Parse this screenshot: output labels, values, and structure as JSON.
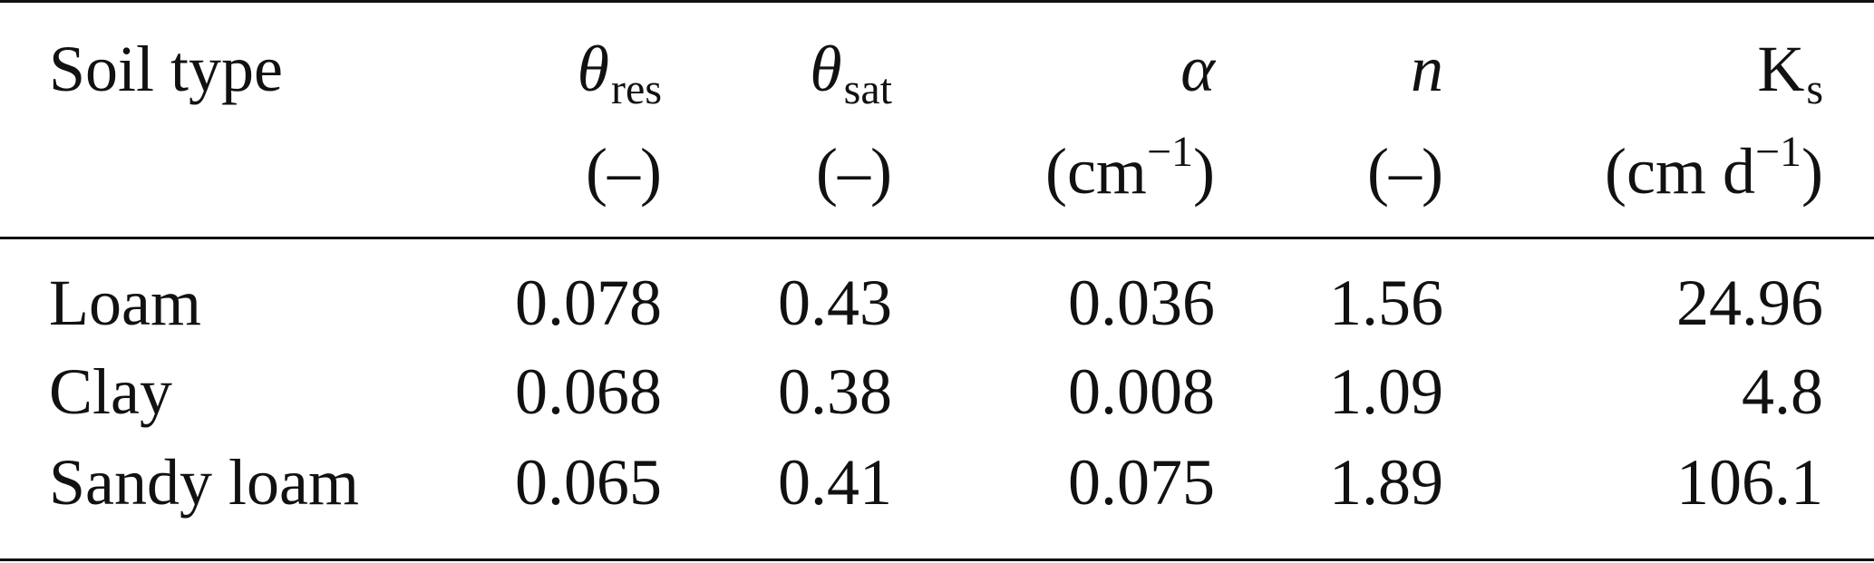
{
  "table": {
    "header": {
      "soil_type": "Soil type",
      "theta_res": {
        "symbol": "θ",
        "sub": "res",
        "unit": "(–)"
      },
      "theta_sat": {
        "symbol": "θ",
        "sub": "sat",
        "unit": "(–)"
      },
      "alpha": {
        "symbol": "α",
        "unit_base": "(cm",
        "unit_sup": "−1",
        "unit_close": ")"
      },
      "n": {
        "symbol": "n",
        "unit": "(–)"
      },
      "ks": {
        "symbol": "K",
        "sub": "s",
        "unit_base": "(cm d",
        "unit_sup": "−1",
        "unit_close": ")"
      }
    },
    "rows": [
      {
        "soil": "Loam",
        "theta_res": "0.078",
        "theta_sat": "0.43",
        "alpha": "0.036",
        "n": "1.56",
        "ks": "24.96"
      },
      {
        "soil": "Clay",
        "theta_res": "0.068",
        "theta_sat": "0.38",
        "alpha": "0.008",
        "n": "1.09",
        "ks": "4.8"
      },
      {
        "soil": "Sandy loam",
        "theta_res": "0.065",
        "theta_sat": "0.41",
        "alpha": "0.075",
        "n": "1.89",
        "ks": "106.1"
      }
    ]
  }
}
